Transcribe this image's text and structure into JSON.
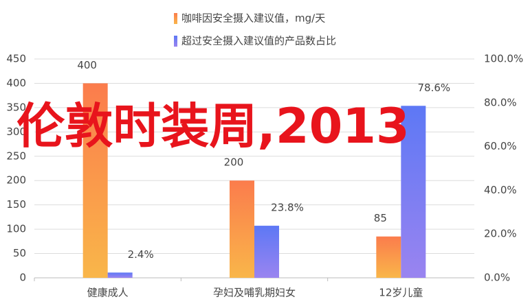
{
  "chart_data": {
    "type": "bar",
    "categories": [
      "健康成人",
      "孕妇及哺乳期妇女",
      "12岁儿童"
    ],
    "series": [
      {
        "name": "咖啡因安全摄入建议值，mg/天",
        "color": "#f9964a",
        "values": [
          400,
          200,
          85
        ]
      },
      {
        "name": "超过安全摄入建议值的产品数占比",
        "color": "#7a80f4",
        "axis": "y2",
        "values": [
          2.4,
          23.8,
          78.6
        ],
        "value_labels": [
          "2.4%",
          "23.8%",
          "78.6%"
        ]
      }
    ],
    "ylim": [
      0,
      450
    ],
    "yticks": [
      0,
      50,
      100,
      150,
      200,
      250,
      300,
      350,
      400,
      450
    ],
    "y2lim": [
      0,
      100
    ],
    "y2ticks": [
      {
        "value": 0,
        "label": "0.0%"
      },
      {
        "value": 20,
        "label": "20.0%"
      },
      {
        "value": 40,
        "label": "40.0%"
      },
      {
        "value": 60,
        "label": "60.0%"
      },
      {
        "value": 80,
        "label": "80.0%"
      },
      {
        "value": 100,
        "label": "100.0%"
      }
    ],
    "grid": true,
    "annotation": "伦敦时装周,2013"
  }
}
